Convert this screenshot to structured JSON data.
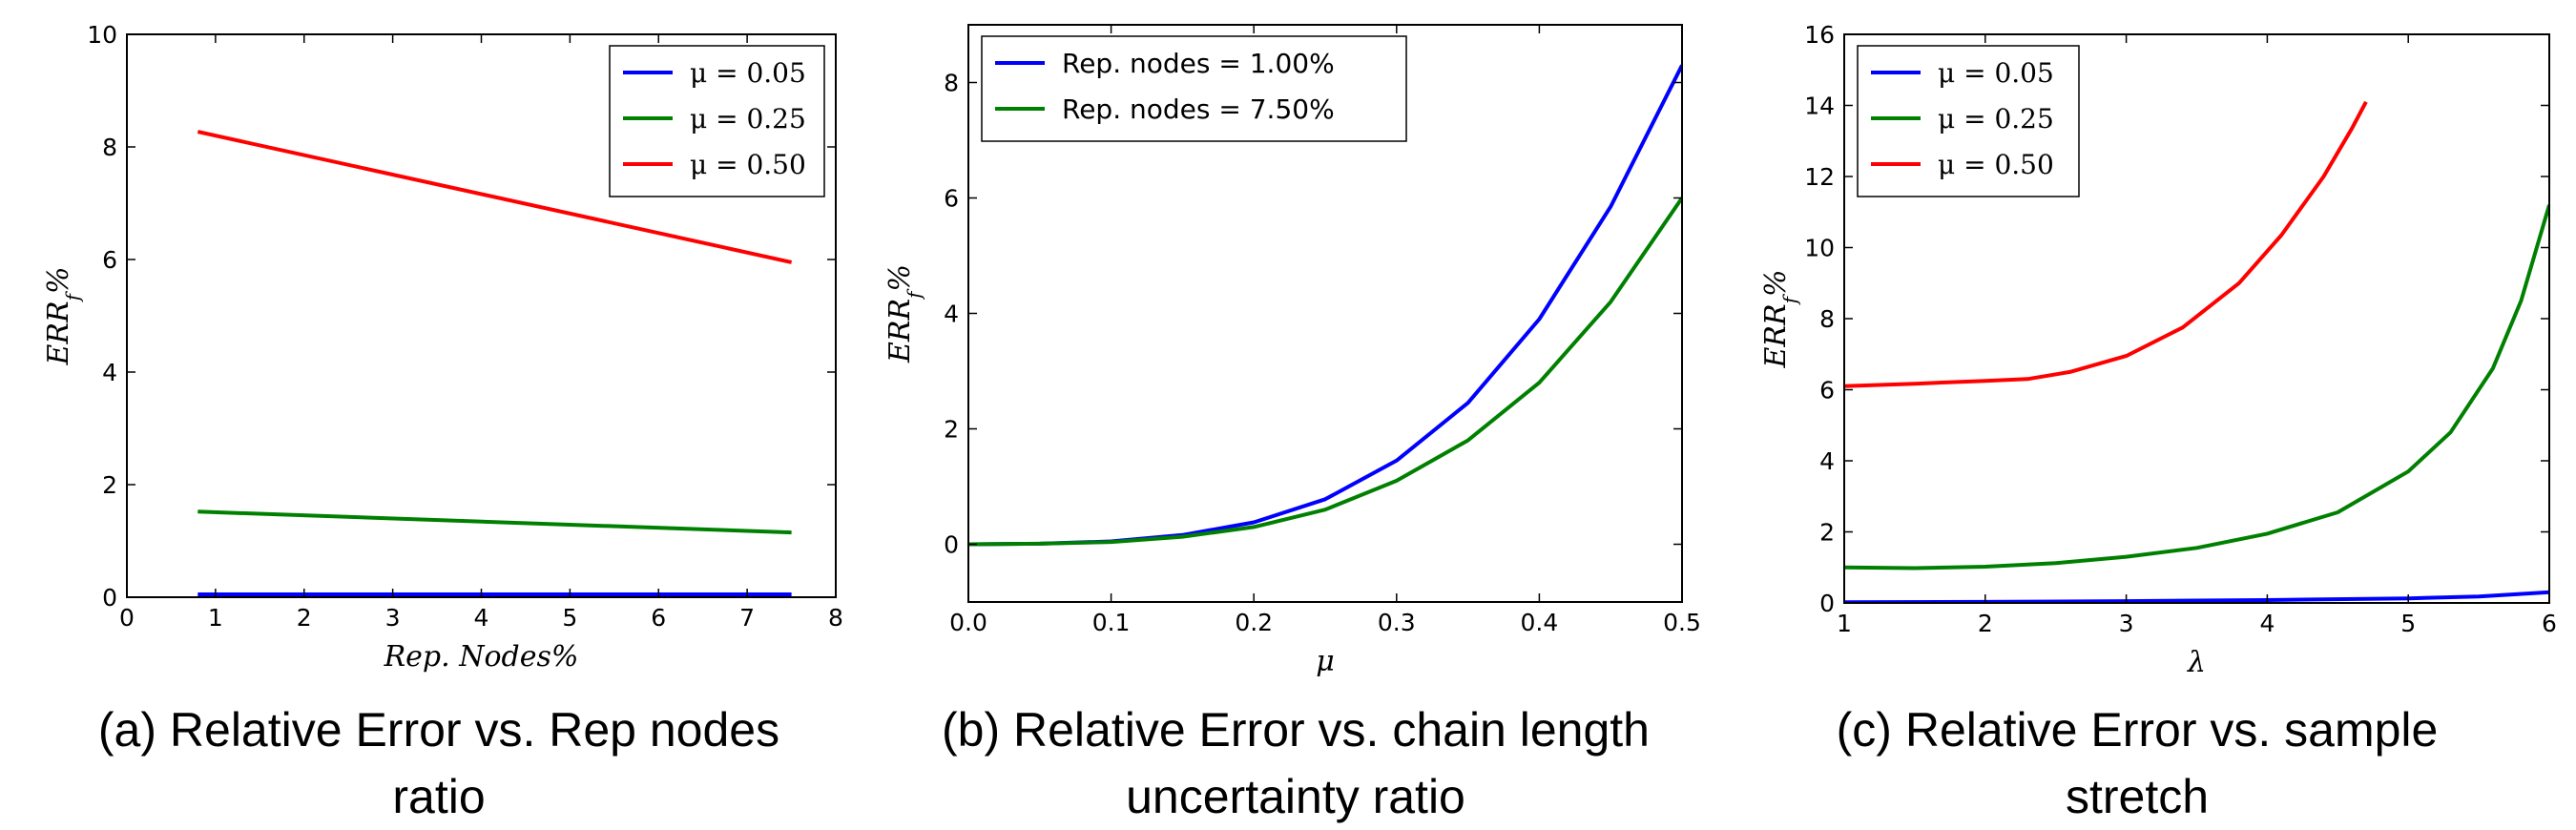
{
  "chart_data": [
    {
      "type": "line",
      "title": "",
      "caption": "(a) Relative Error vs. Rep nodes ratio",
      "xlabel": "Rep. Nodes%",
      "ylabel": "ERR_f%",
      "xlim": [
        0,
        8
      ],
      "ylim": [
        0,
        10
      ],
      "xticks": [
        0,
        1,
        2,
        3,
        4,
        5,
        6,
        7,
        8
      ],
      "yticks": [
        0,
        2,
        4,
        6,
        8,
        10
      ],
      "legend_position": "top-right",
      "series": [
        {
          "name": "μ = 0.05",
          "color": "#0000ff",
          "x": [
            0.8,
            7.5
          ],
          "y": [
            0.05,
            0.05
          ]
        },
        {
          "name": "μ = 0.25",
          "color": "#008000",
          "x": [
            0.8,
            7.5
          ],
          "y": [
            1.52,
            1.15
          ]
        },
        {
          "name": "μ = 0.50",
          "color": "#ff0000",
          "x": [
            0.8,
            7.5
          ],
          "y": [
            8.27,
            5.95
          ]
        }
      ]
    },
    {
      "type": "line",
      "title": "",
      "caption": "(b) Relative Error vs. chain length uncertainty ratio",
      "xlabel": "μ",
      "ylabel": "ERR_f%",
      "xlim": [
        0.0,
        0.5
      ],
      "ylim": [
        -1,
        9
      ],
      "xticks": [
        0.0,
        0.1,
        0.2,
        0.3,
        0.4,
        0.5
      ],
      "yticks": [
        0,
        2,
        4,
        6,
        8
      ],
      "legend_position": "top-left",
      "series": [
        {
          "name": "Rep. nodes = 1.00%",
          "color": "#0000ff",
          "x": [
            0.0,
            0.05,
            0.1,
            0.15,
            0.2,
            0.25,
            0.3,
            0.35,
            0.4,
            0.45,
            0.5
          ],
          "y": [
            0.0,
            0.01,
            0.05,
            0.16,
            0.38,
            0.78,
            1.45,
            2.45,
            3.9,
            5.85,
            8.3
          ]
        },
        {
          "name": "Rep. nodes = 7.50%",
          "color": "#008000",
          "x": [
            0.0,
            0.05,
            0.1,
            0.15,
            0.2,
            0.25,
            0.3,
            0.35,
            0.4,
            0.45,
            0.5
          ],
          "y": [
            0.0,
            0.01,
            0.04,
            0.13,
            0.3,
            0.6,
            1.1,
            1.8,
            2.8,
            4.2,
            6.0
          ]
        }
      ]
    },
    {
      "type": "line",
      "title": "",
      "caption": "(c) Relative Error vs. sample stretch",
      "xlabel": "λ",
      "ylabel": "ERR_f%",
      "xlim": [
        1,
        6
      ],
      "ylim": [
        0,
        16
      ],
      "xticks": [
        1,
        2,
        3,
        4,
        5,
        6
      ],
      "yticks": [
        0,
        2,
        4,
        6,
        8,
        10,
        12,
        14,
        16
      ],
      "legend_position": "top-left",
      "series": [
        {
          "name": "μ = 0.05",
          "color": "#0000ff",
          "x": [
            1.0,
            2.0,
            3.0,
            4.0,
            5.0,
            5.5,
            6.0
          ],
          "y": [
            0.02,
            0.03,
            0.05,
            0.08,
            0.13,
            0.18,
            0.3
          ]
        },
        {
          "name": "μ = 0.25",
          "color": "#008000",
          "x": [
            1.0,
            1.5,
            2.0,
            2.5,
            3.0,
            3.5,
            4.0,
            4.5,
            5.0,
            5.3,
            5.6,
            5.8,
            6.0
          ],
          "y": [
            1.0,
            0.98,
            1.02,
            1.12,
            1.3,
            1.55,
            1.95,
            2.55,
            3.7,
            4.8,
            6.6,
            8.5,
            11.2
          ]
        },
        {
          "name": "μ = 0.50",
          "color": "#ff0000",
          "x": [
            1.0,
            1.5,
            2.0,
            2.3,
            2.6,
            3.0,
            3.4,
            3.8,
            4.1,
            4.4,
            4.6,
            4.7
          ],
          "y": [
            6.1,
            6.17,
            6.25,
            6.3,
            6.5,
            6.95,
            7.75,
            9.0,
            10.35,
            12.0,
            13.35,
            14.1
          ]
        }
      ]
    }
  ]
}
